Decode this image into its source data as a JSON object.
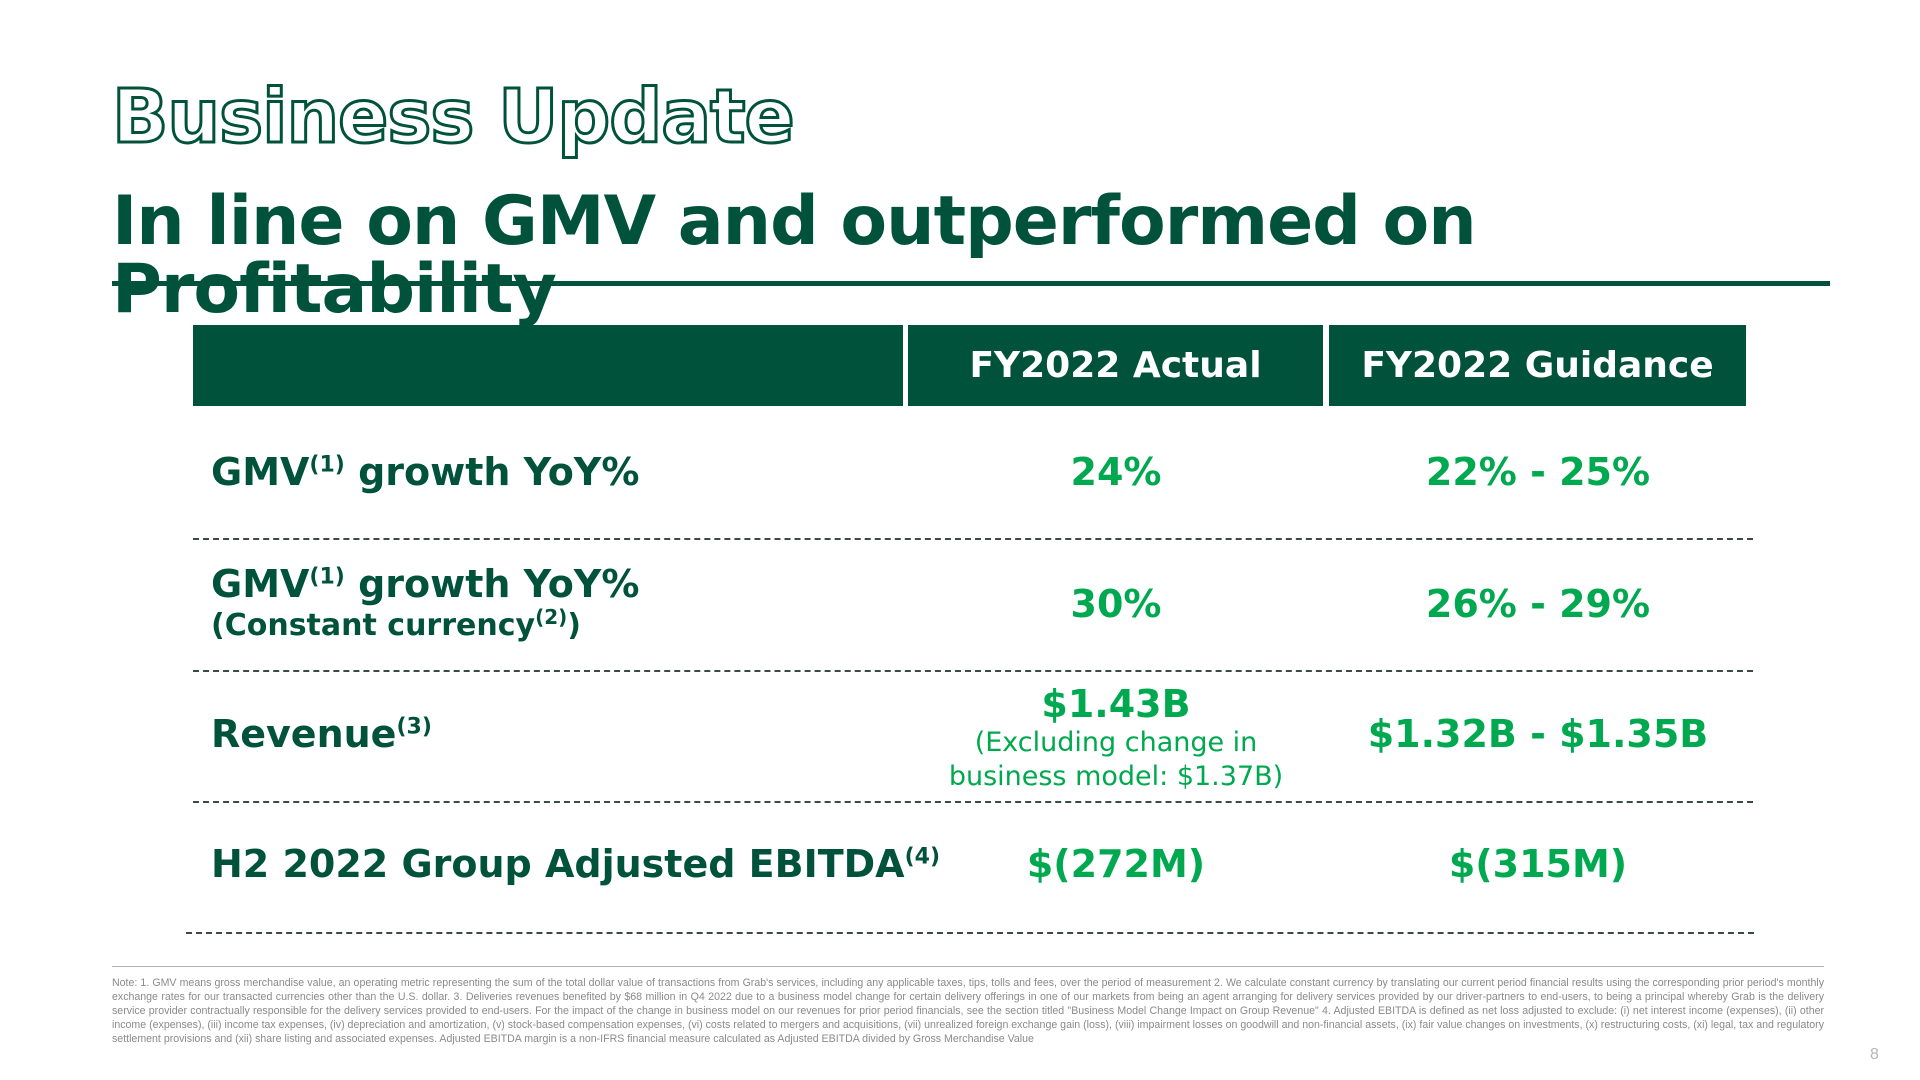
{
  "slide": {
    "title": "Business Update",
    "subtitle": "In line on GMV and outperformed on Profitability",
    "page_number": "8"
  },
  "table": {
    "headers": [
      "FY2022 Actual",
      "FY2022 Guidance"
    ],
    "rows": [
      {
        "label": "GMV",
        "label_sup": "(1)",
        "label_rest": " growth YoY%",
        "actual": "24%",
        "guidance": "22% - 25%"
      },
      {
        "label": "GMV",
        "label_sup": "(1)",
        "label_rest": " growth YoY%",
        "sub_label": "(Constant currency",
        "sub_sup": "(2)",
        "sub_end": ")",
        "actual": "30%",
        "guidance": "26% - 29%"
      },
      {
        "label": "Revenue",
        "label_sup": "(3)",
        "actual": "$1.43B",
        "actual_note_1": "(Excluding change in",
        "actual_note_2": "business model: $1.37B)",
        "guidance": "$1.32B - $1.35B"
      },
      {
        "label": "H2 2022 Group Adjusted EBITDA",
        "label_sup": "(4)",
        "actual": "$(272M)",
        "guidance": "$(315M)"
      }
    ]
  },
  "footnote": "Note: 1. GMV means gross merchandise value, an operating metric representing the sum of the total dollar value of transactions from Grab's services, including any applicable taxes, tips, tolls and fees, over the period of measurement 2. We calculate constant currency by translating our current period financial results using the corresponding prior period's monthly exchange rates for our transacted currencies other than the U.S. dollar. 3. Deliveries revenues benefited by $68 million in Q4 2022 due to a business model change for certain delivery offerings in one of our markets from being an agent arranging for delivery services provided by our driver-partners to end-users, to being a principal whereby Grab is the delivery service provider contractually responsible for the delivery services provided to end-users. For the impact of the change in business model on our revenues for prior period financials, see the section titled \"Business Model Change Impact on Group Revenue\" 4. Adjusted EBITDA is defined as net loss adjusted to exclude: (i) net interest income (expenses), (ii) other income (expenses), (iii) income tax expenses, (iv) depreciation and amortization, (v) stock-based compensation expenses, (vi) costs related to mergers and acquisitions, (vii) unrealized foreign exchange gain (loss), (viii) impairment losses on goodwill and non-financial assets, (ix) fair value changes on investments, (x) restructuring costs, (xi) legal, tax and regulatory settlement provisions and (xii) share listing and associated expenses. Adjusted EBITDA margin is a non-IFRS financial measure calculated as Adjusted EBITDA divided by Gross Merchandise Value",
  "colors": {
    "brand_dark_green": "#00533a",
    "accent_green": "#00a94f"
  }
}
